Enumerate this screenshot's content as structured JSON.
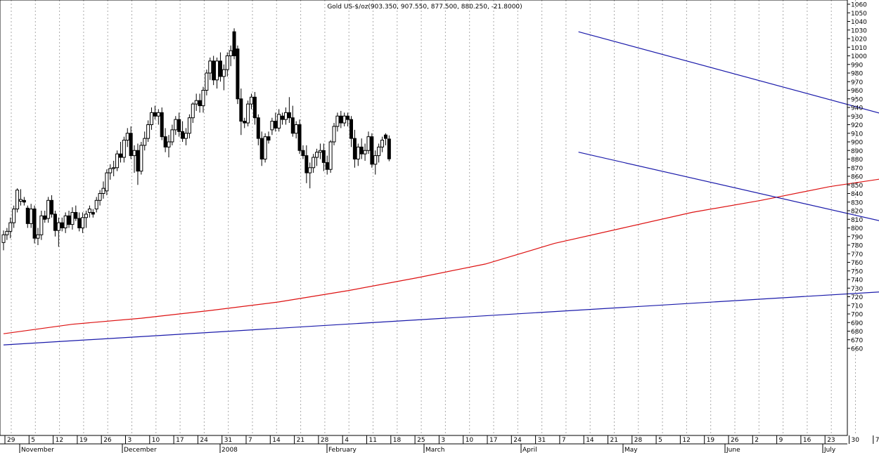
{
  "chart_data": {
    "type": "candlestick",
    "title": "Gold US-$/oz(903.350, 907.550, 877.500, 880.250, -21.8000)",
    "ylim": [
      650,
      1065
    ],
    "y_ticks": [
      660,
      670,
      680,
      690,
      700,
      710,
      720,
      730,
      740,
      750,
      760,
      770,
      780,
      790,
      800,
      810,
      820,
      830,
      840,
      850,
      860,
      870,
      880,
      890,
      900,
      910,
      920,
      930,
      940,
      950,
      960,
      970,
      980,
      990,
      1000,
      1010,
      1020,
      1030,
      1040,
      1050,
      1060
    ],
    "x_tick_labels": [
      "29",
      "5",
      "12",
      "19",
      "26",
      "3",
      "10",
      "17",
      "24",
      "31",
      "7",
      "14",
      "21",
      "28",
      "4",
      "11",
      "18",
      "25",
      "3",
      "10",
      "17",
      "24",
      "31",
      "7",
      "14",
      "21",
      "28",
      "5",
      "12",
      "19",
      "26",
      "2",
      "9",
      "16",
      "23",
      "30",
      "7"
    ],
    "month_labels": [
      "November",
      "December",
      "2008",
      "February",
      "March",
      "April",
      "May",
      "June",
      "July"
    ],
    "grid": true,
    "colors": {
      "up_fill": "#ffffff",
      "down_fill": "#000000",
      "candle_outline": "#000000",
      "moving_average": "#dd1111",
      "trend_lines": "#1a1aaa",
      "grid": "#aaaaaa"
    },
    "candles": [
      [
        783,
        797,
        774,
        792
      ],
      [
        792,
        800,
        786,
        796
      ],
      [
        796,
        812,
        788,
        806
      ],
      [
        806,
        826,
        800,
        822
      ],
      [
        822,
        846,
        818,
        844
      ],
      [
        831,
        845,
        826,
        833
      ],
      [
        832,
        836,
        826,
        830
      ],
      [
        823,
        826,
        800,
        805
      ],
      [
        805,
        828,
        800,
        822
      ],
      [
        822,
        826,
        782,
        788
      ],
      [
        788,
        800,
        780,
        792
      ],
      [
        792,
        820,
        786,
        814
      ],
      [
        814,
        820,
        806,
        810
      ],
      [
        811,
        836,
        806,
        832
      ],
      [
        832,
        838,
        812,
        816
      ],
      [
        816,
        820,
        790,
        797
      ],
      [
        797,
        812,
        778,
        806
      ],
      [
        806,
        812,
        796,
        800
      ],
      [
        800,
        818,
        794,
        814
      ],
      [
        814,
        820,
        800,
        804
      ],
      [
        804,
        824,
        798,
        818
      ],
      [
        818,
        826,
        808,
        811
      ],
      [
        811,
        818,
        796,
        800
      ],
      [
        800,
        818,
        794,
        812
      ],
      [
        812,
        820,
        800,
        816
      ],
      [
        818,
        826,
        812,
        822
      ],
      [
        818,
        822,
        812,
        816
      ],
      [
        822,
        836,
        818,
        832
      ],
      [
        832,
        844,
        826,
        840
      ],
      [
        840,
        854,
        834,
        846
      ],
      [
        843,
        868,
        838,
        864
      ],
      [
        864,
        874,
        856,
        869
      ],
      [
        869,
        878,
        860,
        870
      ],
      [
        870,
        890,
        866,
        886
      ],
      [
        886,
        900,
        876,
        882
      ],
      [
        882,
        906,
        876,
        902
      ],
      [
        902,
        916,
        894,
        910
      ],
      [
        910,
        918,
        880,
        884
      ],
      [
        884,
        896,
        864,
        890
      ],
      [
        890,
        898,
        850,
        866
      ],
      [
        866,
        900,
        862,
        896
      ],
      [
        896,
        912,
        890,
        904
      ],
      [
        904,
        925,
        900,
        920
      ],
      [
        920,
        940,
        914,
        934
      ],
      [
        934,
        942,
        926,
        930
      ],
      [
        930,
        938,
        920,
        934
      ],
      [
        934,
        940,
        902,
        906
      ],
      [
        906,
        916,
        888,
        894
      ],
      [
        894,
        908,
        882,
        900
      ],
      [
        900,
        920,
        896,
        914
      ],
      [
        914,
        930,
        908,
        926
      ],
      [
        926,
        934,
        906,
        912
      ],
      [
        912,
        924,
        900,
        904
      ],
      [
        904,
        916,
        896,
        910
      ],
      [
        910,
        932,
        904,
        928
      ],
      [
        928,
        946,
        922,
        944
      ],
      [
        944,
        956,
        936,
        948
      ],
      [
        948,
        956,
        934,
        942
      ],
      [
        942,
        964,
        934,
        960
      ],
      [
        960,
        984,
        954,
        980
      ],
      [
        980,
        998,
        972,
        994
      ],
      [
        994,
        1000,
        966,
        972
      ],
      [
        972,
        998,
        962,
        994
      ],
      [
        994,
        1004,
        970,
        976
      ],
      [
        976,
        990,
        960,
        984
      ],
      [
        984,
        1004,
        976,
        1000
      ],
      [
        1000,
        1012,
        988,
        1006
      ],
      [
        1028,
        1032,
        996,
        1000
      ],
      [
        1008,
        1012,
        944,
        950
      ],
      [
        950,
        962,
        908,
        924
      ],
      [
        924,
        928,
        916,
        922
      ],
      [
        922,
        948,
        918,
        944
      ],
      [
        944,
        956,
        938,
        952
      ],
      [
        952,
        958,
        920,
        928
      ],
      [
        928,
        932,
        896,
        904
      ],
      [
        904,
        912,
        872,
        880
      ],
      [
        880,
        910,
        876,
        906
      ],
      [
        906,
        912,
        898,
        902
      ],
      [
        914,
        928,
        908,
        924
      ],
      [
        924,
        934,
        912,
        916
      ],
      [
        916,
        938,
        912,
        932
      ],
      [
        930,
        934,
        920,
        926
      ],
      [
        926,
        940,
        920,
        934
      ],
      [
        934,
        952,
        922,
        928
      ],
      [
        928,
        942,
        906,
        910
      ],
      [
        910,
        924,
        904,
        920
      ],
      [
        920,
        926,
        886,
        890
      ],
      [
        890,
        896,
        880,
        884
      ],
      [
        884,
        896,
        852,
        864
      ],
      [
        864,
        876,
        846,
        870
      ],
      [
        870,
        886,
        864,
        882
      ],
      [
        882,
        892,
        872,
        888
      ],
      [
        888,
        898,
        880,
        890
      ],
      [
        890,
        898,
        866,
        876
      ],
      [
        876,
        884,
        862,
        868
      ],
      [
        868,
        902,
        864,
        900
      ],
      [
        900,
        922,
        896,
        918
      ],
      [
        918,
        934,
        912,
        930
      ],
      [
        930,
        936,
        916,
        922
      ],
      [
        922,
        934,
        918,
        930
      ],
      [
        930,
        934,
        918,
        926
      ],
      [
        926,
        930,
        894,
        904
      ],
      [
        904,
        914,
        870,
        880
      ],
      [
        880,
        898,
        872,
        894
      ],
      [
        894,
        904,
        880,
        886
      ],
      [
        886,
        898,
        878,
        890
      ],
      [
        890,
        912,
        886,
        906
      ],
      [
        906,
        910,
        870,
        874
      ],
      [
        874,
        890,
        862,
        884
      ],
      [
        884,
        898,
        876,
        894
      ],
      [
        894,
        906,
        888,
        902
      ],
      [
        908,
        910,
        896,
        904
      ],
      [
        903.35,
        907.55,
        877.5,
        880.25
      ]
    ],
    "moving_average": [
      [
        0,
        677
      ],
      [
        20,
        688
      ],
      [
        40,
        695
      ],
      [
        60,
        704
      ],
      [
        80,
        714
      ],
      [
        100,
        727
      ],
      [
        120,
        742
      ],
      [
        140,
        758
      ],
      [
        160,
        782
      ],
      [
        180,
        800
      ],
      [
        200,
        818
      ],
      [
        220,
        832
      ],
      [
        240,
        848
      ],
      [
        260,
        860
      ],
      [
        281,
        866
      ]
    ],
    "trend_lines": [
      {
        "from": [
          167,
          1028
        ],
        "to": [
          302,
          882
        ]
      },
      {
        "from": [
          167,
          888
        ],
        "to": [
          302,
          765
        ]
      },
      {
        "from": [
          0,
          664
        ],
        "to": [
          281,
          732
        ]
      }
    ]
  }
}
